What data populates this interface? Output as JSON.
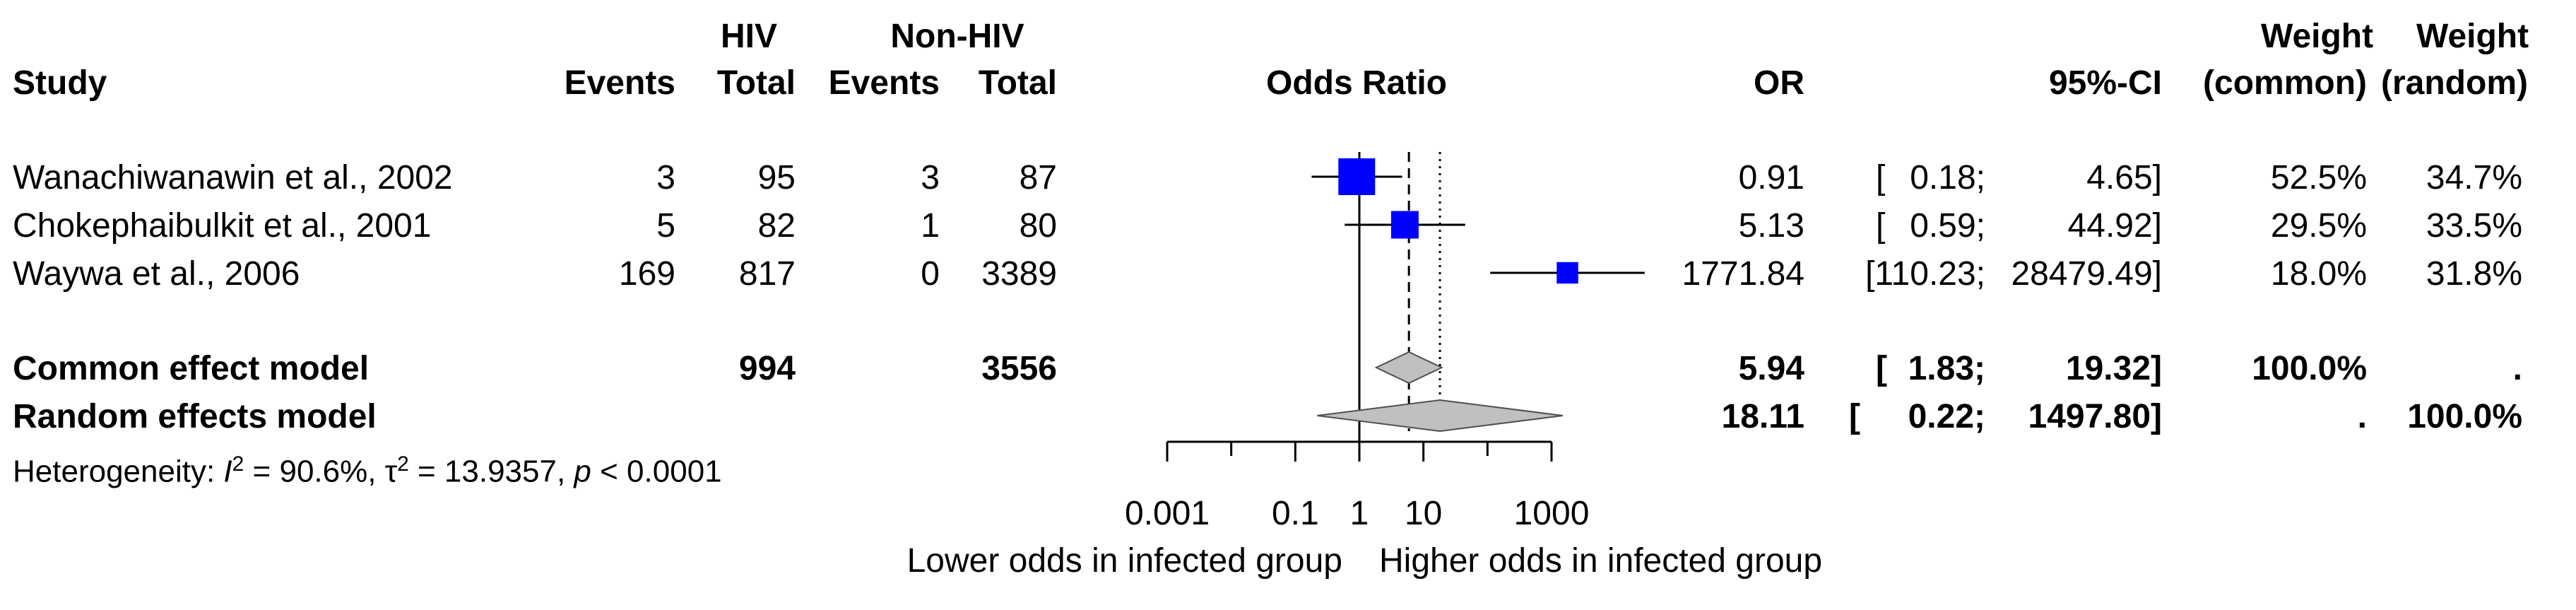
{
  "header": {
    "group1": "HIV",
    "group2": "Non-HIV",
    "study": "Study",
    "events": "Events",
    "total": "Total",
    "odds_ratio": "Odds Ratio",
    "or": "OR",
    "ci": "95%-CI",
    "weight": "Weight",
    "common": "(common)",
    "random": "(random)"
  },
  "studies": [
    {
      "name": "Wanachiwanawin et al., 2002",
      "ev1": "3",
      "tot1": "95",
      "ev2": "3",
      "tot2": "87",
      "or": "0.91",
      "lower": "0.18;",
      "upper": "4.65]",
      "w_common": "52.5%",
      "w_random": "34.7%"
    },
    {
      "name": "Chokephaibulkit et al., 2001",
      "ev1": "5",
      "tot1": "82",
      "ev2": "1",
      "tot2": "80",
      "or": "5.13",
      "lower": "0.59;",
      "upper": "44.92]",
      "w_common": "29.5%",
      "w_random": "33.5%"
    },
    {
      "name": "Waywa et al., 2006",
      "ev1": "169",
      "tot1": "817",
      "ev2": "0",
      "tot2": "3389",
      "or": "1771.84",
      "lower": "[110.23;",
      "upper": "28479.49]",
      "w_common": "18.0%",
      "w_random": "31.8%"
    }
  ],
  "common": {
    "label": "Common effect model",
    "tot1": "994",
    "tot2": "3556",
    "or": "5.94",
    "lower": "1.83;",
    "upper": "19.32]",
    "w_common": "100.0%",
    "w_random": "."
  },
  "random": {
    "label": "Random effects model",
    "or": "18.11",
    "lower": "0.22;",
    "upper": "1497.80]",
    "w_common": ".",
    "w_random": "100.0%"
  },
  "ci_open": "[",
  "heterogeneity": {
    "prefix": "Heterogeneity: ",
    "i_sym": "I",
    "sq": "2",
    "i2_text": " = 90.6%, ",
    "tau_sym": "τ",
    "tau_text": " = 13.9357, ",
    "p_sym": "p",
    "p_text": " < 0.0001"
  },
  "axis": {
    "ticks": [
      "0.001",
      "0.1",
      "1",
      "10",
      "1000"
    ],
    "lower_label": "Lower odds in infected group",
    "higher_label": "Higher odds in infected group"
  },
  "chart_data": {
    "type": "forest",
    "scale": "log",
    "xlim": [
      0.001,
      1000
    ],
    "xticks": [
      0.001,
      0.1,
      1,
      10,
      1000
    ],
    "null_line": 1,
    "studies": [
      {
        "name": "Wanachiwanawin et al., 2002",
        "or": 0.91,
        "lower": 0.18,
        "upper": 4.65,
        "weight_common": 52.5
      },
      {
        "name": "Chokephaibulkit et al., 2001",
        "or": 5.13,
        "lower": 0.59,
        "upper": 44.92,
        "weight_common": 29.5
      },
      {
        "name": "Waywa et al., 2006",
        "or": 1771.84,
        "lower": 110.23,
        "upper": 28479.49,
        "weight_common": 18.0
      }
    ],
    "pooled": [
      {
        "model": "common",
        "or": 5.94,
        "lower": 1.83,
        "upper": 19.32
      },
      {
        "model": "random",
        "or": 18.11,
        "lower": 0.22,
        "upper": 1497.8
      }
    ],
    "colors": {
      "box": "#0000ff",
      "diamond": "#c0c0c0",
      "line": "#000000"
    }
  }
}
